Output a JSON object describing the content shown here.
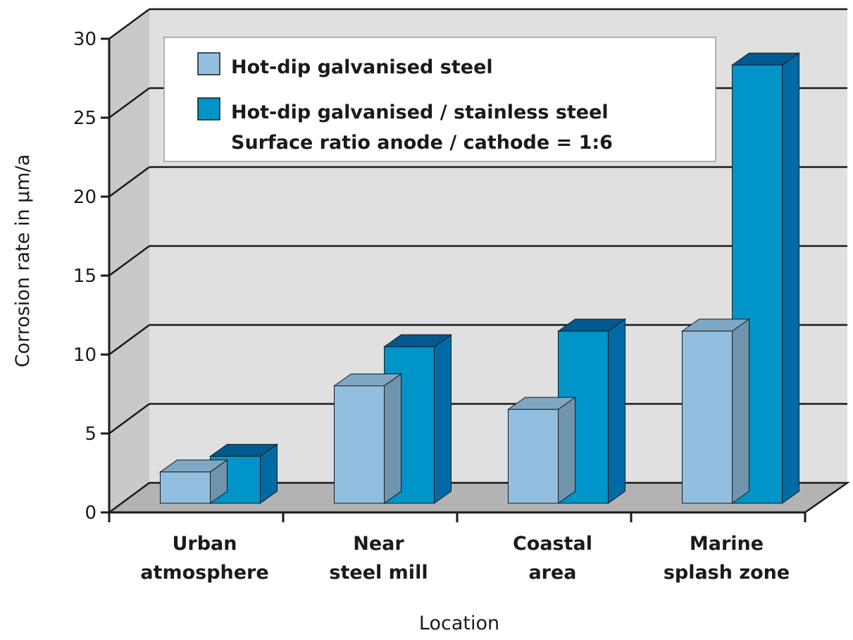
{
  "chart_data": {
    "type": "bar",
    "title": "",
    "xlabel": "Location",
    "ylabel": "Corrosion rate in µm/a",
    "ylim": [
      0,
      30
    ],
    "yticks": [
      "0",
      "5",
      "10",
      "15",
      "20",
      "25",
      "30"
    ],
    "grid": true,
    "legend_position": "top",
    "categories": [
      [
        "Urban",
        "atmosphere"
      ],
      [
        "Near",
        "steel mill"
      ],
      [
        "Coastal",
        "area"
      ],
      [
        "Marine",
        "splash zone"
      ]
    ],
    "series": [
      {
        "name": "Hot-dip galvanised steel",
        "values": [
          2,
          7.5,
          6,
          11
        ],
        "color": "#92bfe0"
      },
      {
        "name": "Hot-dip galvanised / stainless steel",
        "name_line2": "Surface ratio anode / cathode = 1:6",
        "values": [
          3,
          10,
          11,
          28
        ],
        "color": "#0094c8"
      }
    ],
    "colors": {
      "back_wall": "#e0e0e0",
      "side_wall": "#c9c9c9",
      "floor": "#b3b3b3",
      "light_top": "#7ea7c4",
      "light_edge": "#6e94ae",
      "dark_top": "#005a8f",
      "dark_side": "#006aa5"
    }
  }
}
